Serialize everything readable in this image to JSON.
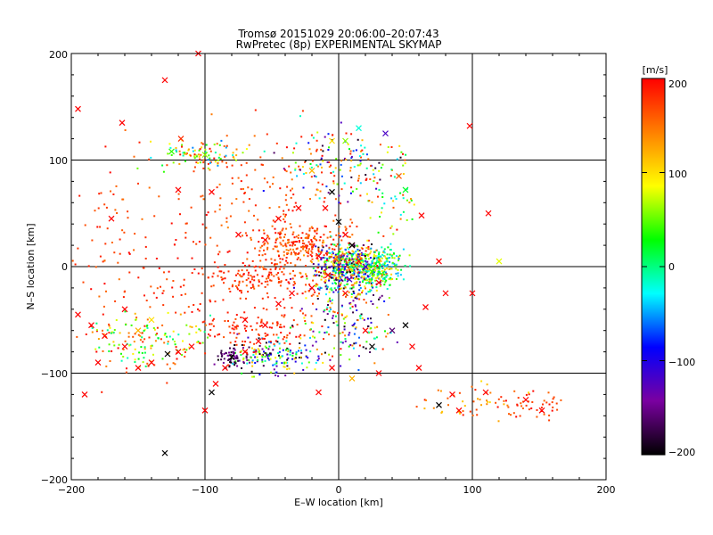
{
  "chart_data": {
    "type": "scatter",
    "title": "Tromsø 20151029 20:06:00–20:07:43",
    "subtitle": "RwPretec (8p) EXPERIMENTAL SKYMAP",
    "xlabel": "E–W location [km]",
    "ylabel": "N–S location [km]",
    "xlim": [
      -200,
      200
    ],
    "ylim": [
      -200,
      200
    ],
    "xticks": [
      "−200",
      "−100",
      "0",
      "100",
      "200"
    ],
    "yticks": [
      "−200",
      "−100",
      "0",
      "100",
      "200"
    ],
    "grid": true,
    "colorbar": {
      "label": "[m/s]",
      "range": [
        -200,
        200
      ],
      "ticks": [
        "200",
        "100",
        "0",
        "−100",
        "−200"
      ],
      "colors": [
        "#000000",
        "#7a00a0",
        "#0000ff",
        "#00ffff",
        "#00ff00",
        "#ffff00",
        "#ff8000",
        "#ff0000"
      ]
    },
    "series": [
      {
        "marker": "x",
        "points": [
          [
            -195,
            148,
            200
          ],
          [
            -130,
            175,
            200
          ],
          [
            -162,
            135,
            200
          ],
          [
            -118,
            120,
            180
          ],
          [
            -100,
            105,
            60
          ],
          [
            -125,
            108,
            40
          ],
          [
            -95,
            70,
            200
          ],
          [
            -120,
            72,
            200
          ],
          [
            -105,
            200,
            200
          ],
          [
            -45,
            45,
            200
          ],
          [
            -30,
            55,
            200
          ],
          [
            -20,
            90,
            120
          ],
          [
            -5,
            118,
            100
          ],
          [
            5,
            118,
            60
          ],
          [
            15,
            130,
            -20
          ],
          [
            35,
            125,
            -120
          ],
          [
            45,
            85,
            160
          ],
          [
            50,
            72,
            20
          ],
          [
            62,
            48,
            200
          ],
          [
            98,
            132,
            200
          ],
          [
            112,
            50,
            200
          ],
          [
            120,
            5,
            80
          ],
          [
            75,
            5,
            200
          ],
          [
            80,
            -25,
            200
          ],
          [
            65,
            -38,
            200
          ],
          [
            50,
            -55,
            -200
          ],
          [
            55,
            -75,
            200
          ],
          [
            60,
            -95,
            200
          ],
          [
            40,
            -60,
            -160
          ],
          [
            25,
            -75,
            -200
          ],
          [
            20,
            -60,
            200
          ],
          [
            30,
            -100,
            200
          ],
          [
            10,
            -105,
            120
          ],
          [
            -5,
            -95,
            200
          ],
          [
            -15,
            -118,
            200
          ],
          [
            5,
            -25,
            200
          ],
          [
            -20,
            -20,
            200
          ],
          [
            -35,
            -25,
            200
          ],
          [
            -45,
            -35,
            200
          ],
          [
            -55,
            -55,
            200
          ],
          [
            -60,
            -70,
            200
          ],
          [
            -70,
            -80,
            200
          ],
          [
            -80,
            -85,
            -200
          ],
          [
            -85,
            -95,
            200
          ],
          [
            -92,
            -110,
            200
          ],
          [
            -95,
            -118,
            -200
          ],
          [
            -100,
            -135,
            200
          ],
          [
            -110,
            -75,
            200
          ],
          [
            -120,
            -80,
            200
          ],
          [
            -128,
            -82,
            -200
          ],
          [
            -140,
            -90,
            200
          ],
          [
            -150,
            -95,
            200
          ],
          [
            -160,
            -75,
            200
          ],
          [
            -175,
            -65,
            200
          ],
          [
            -185,
            -55,
            200
          ],
          [
            -195,
            -45,
            200
          ],
          [
            -190,
            -120,
            200
          ],
          [
            -130,
            -175,
            -200
          ],
          [
            -160,
            -40,
            200
          ],
          [
            -170,
            45,
            200
          ],
          [
            -140,
            -50,
            100
          ],
          [
            -150,
            -60,
            120
          ],
          [
            -180,
            -90,
            200
          ],
          [
            -5,
            70,
            -200
          ],
          [
            -10,
            55,
            200
          ],
          [
            0,
            42,
            -200
          ],
          [
            5,
            30,
            200
          ],
          [
            10,
            20,
            200
          ],
          [
            15,
            5,
            200
          ],
          [
            20,
            0,
            -100
          ],
          [
            25,
            -5,
            40
          ],
          [
            30,
            -15,
            200
          ],
          [
            8,
            -12,
            -120
          ],
          [
            -8,
            -8,
            200
          ],
          [
            -15,
            10,
            200
          ],
          [
            100,
            -25,
            200
          ],
          [
            90,
            -135,
            200
          ],
          [
            75,
            -130,
            -200
          ],
          [
            85,
            -120,
            200
          ],
          [
            110,
            -118,
            200
          ],
          [
            140,
            -125,
            200
          ],
          [
            152,
            -135,
            200
          ],
          [
            -70,
            -50,
            200
          ],
          [
            -55,
            25,
            200
          ],
          [
            -75,
            30,
            200
          ],
          [
            10,
            20,
            -200
          ]
        ]
      },
      {
        "marker": "dot",
        "clusters": [
          {
            "cx": 8,
            "cy": 0,
            "rx": 22,
            "ry": 18,
            "n": 520,
            "vmin": -200,
            "vmax": 200
          },
          {
            "cx": 28,
            "cy": 0,
            "rx": 18,
            "ry": 15,
            "n": 220,
            "vmin": -60,
            "vmax": 120
          },
          {
            "cx": -30,
            "cy": 20,
            "rx": 30,
            "ry": 15,
            "n": 220,
            "vmin": 140,
            "vmax": 200
          },
          {
            "cx": -55,
            "cy": -10,
            "rx": 35,
            "ry": 14,
            "n": 140,
            "vmin": 150,
            "vmax": 200
          },
          {
            "cx": -45,
            "cy": -85,
            "rx": 28,
            "ry": 15,
            "n": 170,
            "vmin": -200,
            "vmax": 120
          },
          {
            "cx": -80,
            "cy": -85,
            "rx": 10,
            "ry": 8,
            "n": 60,
            "vmin": -200,
            "vmax": -140
          },
          {
            "cx": -105,
            "cy": 105,
            "rx": 30,
            "ry": 12,
            "n": 100,
            "vmin": -60,
            "vmax": 200
          },
          {
            "cx": -140,
            "cy": -70,
            "rx": 35,
            "ry": 22,
            "n": 150,
            "vmin": -20,
            "vmax": 200
          },
          {
            "cx": -60,
            "cy": -55,
            "rx": 40,
            "ry": 25,
            "n": 130,
            "vmin": 160,
            "vmax": 200
          },
          {
            "cx": -40,
            "cy": 70,
            "rx": 60,
            "ry": 50,
            "n": 160,
            "vmin": 140,
            "vmax": 200
          },
          {
            "cx": 0,
            "cy": 95,
            "rx": 35,
            "ry": 30,
            "n": 110,
            "vmin": -200,
            "vmax": 200
          },
          {
            "cx": -170,
            "cy": 20,
            "rx": 30,
            "ry": 110,
            "n": 80,
            "vmin": 150,
            "vmax": 200
          },
          {
            "cx": 40,
            "cy": 70,
            "rx": 20,
            "ry": 40,
            "n": 60,
            "vmin": -50,
            "vmax": 200
          },
          {
            "cx": 5,
            "cy": -65,
            "rx": 30,
            "ry": 20,
            "n": 90,
            "vmin": -200,
            "vmax": 200
          },
          {
            "cx": 145,
            "cy": -130,
            "rx": 20,
            "ry": 10,
            "n": 45,
            "vmin": 150,
            "vmax": 200
          },
          {
            "cx": 100,
            "cy": -128,
            "rx": 30,
            "ry": 15,
            "n": 45,
            "vmin": 100,
            "vmax": 200
          },
          {
            "cx": -110,
            "cy": 0,
            "rx": 45,
            "ry": 45,
            "n": 90,
            "vmin": 160,
            "vmax": 200
          },
          {
            "cx": 0,
            "cy": -30,
            "rx": 30,
            "ry": 25,
            "n": 120,
            "vmin": -200,
            "vmax": 200
          }
        ]
      }
    ]
  }
}
